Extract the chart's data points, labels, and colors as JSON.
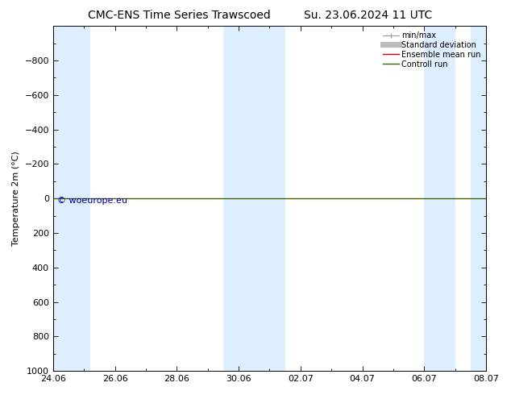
{
  "title_left": "CMC-ENS Time Series Trawscoed",
  "title_right": "Su. 23.06.2024 11 UTC",
  "ylabel": "Temperature 2m (°C)",
  "ylim_top": -1000,
  "ylim_bottom": 1000,
  "yticks": [
    -800,
    -600,
    -400,
    -200,
    0,
    200,
    400,
    600,
    800,
    1000
  ],
  "xlim_left": 0,
  "xlim_right": 14,
  "xtick_positions": [
    0,
    2,
    4,
    6,
    8,
    10,
    12,
    14
  ],
  "xtick_labels": [
    "24.06",
    "26.06",
    "28.06",
    "30.06",
    "02.07",
    "04.07",
    "06.07",
    "08.07"
  ],
  "blue_bands": [
    [
      0.0,
      1.2
    ],
    [
      5.5,
      7.5
    ],
    [
      12.0,
      13.0
    ],
    [
      13.5,
      14.0
    ]
  ],
  "band_color": "#ddeeff",
  "green_line_y": 0,
  "red_line_y": 0,
  "green_color": "#336600",
  "red_color": "#cc0000",
  "watermark": "© woeurope.eu",
  "watermark_color": "#0000aa",
  "background_color": "#ffffff",
  "legend_items": [
    "min/max",
    "Standard deviation",
    "Ensemble mean run",
    "Controll run"
  ],
  "legend_line_colors": [
    "#999999",
    "#bbbbbb",
    "#cc0000",
    "#336600"
  ],
  "title_fontsize": 10,
  "axis_fontsize": 8,
  "legend_fontsize": 7
}
